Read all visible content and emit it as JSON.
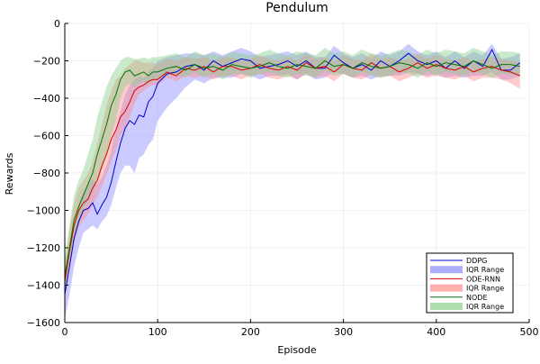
{
  "chart_data": {
    "type": "line",
    "title": "Pendulum",
    "xlabel": "Episode",
    "ylabel": "Rewards",
    "xlim": [
      0,
      500
    ],
    "ylim": [
      -1600,
      0
    ],
    "xticks": [
      0,
      100,
      200,
      300,
      400,
      500
    ],
    "yticks": [
      -1600,
      -1400,
      -1200,
      -1000,
      -800,
      -600,
      -400,
      -200,
      0
    ],
    "grid": true,
    "legend_position": "bottom-right",
    "series": [
      {
        "name": "DDPG",
        "band_name": "IQR Range",
        "color": "#0000cc",
        "band_color": "#8c8cff",
        "x": [
          0,
          5,
          10,
          15,
          20,
          25,
          30,
          35,
          40,
          45,
          50,
          55,
          60,
          65,
          70,
          75,
          80,
          85,
          90,
          95,
          100,
          110,
          120,
          130,
          140,
          150,
          160,
          170,
          180,
          190,
          200,
          210,
          220,
          230,
          240,
          250,
          260,
          270,
          280,
          290,
          300,
          310,
          320,
          330,
          340,
          350,
          360,
          370,
          380,
          390,
          400,
          410,
          420,
          430,
          440,
          450,
          460,
          470,
          480,
          490
        ],
        "y": [
          -1450,
          -1300,
          -1150,
          -1060,
          -1000,
          -990,
          -960,
          -1020,
          -970,
          -930,
          -850,
          -740,
          -640,
          -560,
          -520,
          -540,
          -490,
          -500,
          -420,
          -390,
          -320,
          -270,
          -260,
          -230,
          -220,
          -250,
          -200,
          -230,
          -210,
          -190,
          -200,
          -240,
          -230,
          -220,
          -200,
          -230,
          -200,
          -240,
          -240,
          -170,
          -210,
          -240,
          -220,
          -250,
          -200,
          -230,
          -200,
          -160,
          -200,
          -220,
          -200,
          -240,
          -200,
          -240,
          -200,
          -230,
          -140,
          -250,
          -250,
          -210
        ],
        "q1": [
          -1580,
          -1450,
          -1300,
          -1200,
          -1120,
          -1100,
          -1080,
          -1100,
          -1060,
          -1030,
          -970,
          -880,
          -800,
          -760,
          -760,
          -800,
          -720,
          -700,
          -650,
          -620,
          -520,
          -450,
          -400,
          -340,
          -300,
          -320,
          -290,
          -290,
          -290,
          -270,
          -280,
          -300,
          -280,
          -280,
          -270,
          -300,
          -270,
          -300,
          -290,
          -260,
          -270,
          -290,
          -280,
          -300,
          -280,
          -280,
          -280,
          -260,
          -270,
          -280,
          -270,
          -290,
          -280,
          -290,
          -280,
          -280,
          -260,
          -300,
          -300,
          -280
        ],
        "q3": [
          -1350,
          -1180,
          -1040,
          -960,
          -900,
          -860,
          -830,
          -860,
          -820,
          -760,
          -680,
          -560,
          -470,
          -380,
          -330,
          -300,
          -280,
          -290,
          -260,
          -240,
          -200,
          -180,
          -170,
          -160,
          -160,
          -170,
          -150,
          -170,
          -150,
          -130,
          -150,
          -180,
          -170,
          -160,
          -150,
          -170,
          -150,
          -180,
          -180,
          -120,
          -160,
          -180,
          -160,
          -190,
          -150,
          -170,
          -150,
          -110,
          -150,
          -170,
          -150,
          -180,
          -150,
          -180,
          -150,
          -170,
          -110,
          -190,
          -180,
          -160
        ]
      },
      {
        "name": "ODE-RNN",
        "band_name": "IQR Range",
        "color": "#dd0000",
        "band_color": "#ff8c8c",
        "x": [
          0,
          5,
          10,
          15,
          20,
          25,
          30,
          35,
          40,
          45,
          50,
          55,
          60,
          65,
          70,
          75,
          80,
          85,
          90,
          95,
          100,
          110,
          120,
          130,
          140,
          150,
          160,
          170,
          180,
          190,
          200,
          210,
          220,
          230,
          240,
          250,
          260,
          270,
          280,
          290,
          300,
          310,
          320,
          330,
          340,
          350,
          360,
          370,
          380,
          390,
          400,
          410,
          420,
          430,
          440,
          450,
          460,
          470,
          480,
          490
        ],
        "y": [
          -1380,
          -1220,
          -1080,
          -1000,
          -960,
          -940,
          -880,
          -840,
          -760,
          -700,
          -620,
          -570,
          -500,
          -470,
          -420,
          -360,
          -340,
          -330,
          -310,
          -300,
          -300,
          -260,
          -280,
          -240,
          -250,
          -230,
          -260,
          -230,
          -230,
          -250,
          -240,
          -220,
          -240,
          -250,
          -230,
          -250,
          -210,
          -240,
          -230,
          -260,
          -220,
          -240,
          -250,
          -210,
          -240,
          -230,
          -260,
          -240,
          -210,
          -240,
          -220,
          -240,
          -250,
          -230,
          -260,
          -240,
          -230,
          -250,
          -260,
          -280
        ],
        "q1": [
          -1460,
          -1320,
          -1180,
          -1090,
          -1050,
          -1020,
          -970,
          -930,
          -870,
          -810,
          -740,
          -680,
          -600,
          -560,
          -500,
          -430,
          -380,
          -360,
          -340,
          -330,
          -330,
          -290,
          -310,
          -280,
          -290,
          -280,
          -300,
          -280,
          -280,
          -300,
          -280,
          -270,
          -290,
          -300,
          -280,
          -300,
          -270,
          -290,
          -280,
          -310,
          -270,
          -290,
          -300,
          -270,
          -290,
          -280,
          -310,
          -290,
          -270,
          -290,
          -280,
          -290,
          -300,
          -280,
          -310,
          -290,
          -290,
          -300,
          -320,
          -350
        ],
        "q3": [
          -1300,
          -1100,
          -960,
          -880,
          -840,
          -800,
          -740,
          -640,
          -540,
          -440,
          -360,
          -300,
          -280,
          -240,
          -220,
          -200,
          -200,
          -210,
          -210,
          -210,
          -220,
          -190,
          -200,
          -180,
          -190,
          -180,
          -200,
          -180,
          -180,
          -200,
          -190,
          -170,
          -190,
          -200,
          -180,
          -200,
          -160,
          -190,
          -180,
          -200,
          -170,
          -190,
          -200,
          -160,
          -190,
          -180,
          -200,
          -190,
          -160,
          -190,
          -170,
          -190,
          -200,
          -180,
          -200,
          -190,
          -180,
          -190,
          -200,
          -210
        ]
      },
      {
        "name": "NODE",
        "band_name": "IQR Range",
        "color": "#007700",
        "band_color": "#8ccf8c",
        "x": [
          0,
          5,
          10,
          15,
          20,
          25,
          30,
          35,
          40,
          45,
          50,
          55,
          60,
          65,
          70,
          75,
          80,
          85,
          90,
          95,
          100,
          110,
          120,
          130,
          140,
          150,
          160,
          170,
          180,
          190,
          200,
          210,
          220,
          230,
          240,
          250,
          260,
          270,
          280,
          290,
          300,
          310,
          320,
          330,
          340,
          350,
          360,
          370,
          380,
          390,
          400,
          410,
          420,
          430,
          440,
          450,
          460,
          470,
          480,
          490
        ],
        "y": [
          -1350,
          -1200,
          -1050,
          -980,
          -920,
          -860,
          -800,
          -700,
          -620,
          -540,
          -440,
          -380,
          -300,
          -260,
          -250,
          -280,
          -270,
          -260,
          -280,
          -260,
          -260,
          -240,
          -230,
          -250,
          -220,
          -240,
          -230,
          -250,
          -220,
          -230,
          -240,
          -230,
          -210,
          -230,
          -240,
          -220,
          -230,
          -240,
          -200,
          -230,
          -220,
          -240,
          -210,
          -230,
          -240,
          -230,
          -210,
          -220,
          -240,
          -210,
          -230,
          -210,
          -220,
          -230,
          -200,
          -220,
          -240,
          -220,
          -220,
          -230
        ],
        "q1": [
          -1430,
          -1300,
          -1160,
          -1070,
          -1000,
          -950,
          -900,
          -840,
          -780,
          -700,
          -600,
          -520,
          -400,
          -340,
          -320,
          -340,
          -320,
          -310,
          -330,
          -300,
          -300,
          -280,
          -270,
          -290,
          -260,
          -290,
          -270,
          -300,
          -270,
          -270,
          -290,
          -270,
          -260,
          -280,
          -290,
          -270,
          -280,
          -290,
          -250,
          -280,
          -270,
          -290,
          -260,
          -280,
          -290,
          -280,
          -260,
          -270,
          -290,
          -260,
          -280,
          -260,
          -270,
          -280,
          -260,
          -270,
          -290,
          -270,
          -270,
          -280
        ],
        "q3": [
          -1260,
          -1080,
          -920,
          -840,
          -780,
          -700,
          -620,
          -500,
          -420,
          -340,
          -280,
          -240,
          -200,
          -180,
          -180,
          -190,
          -190,
          -180,
          -190,
          -180,
          -180,
          -170,
          -160,
          -180,
          -150,
          -170,
          -160,
          -180,
          -150,
          -160,
          -170,
          -160,
          -140,
          -160,
          -170,
          -150,
          -160,
          -170,
          -130,
          -160,
          -150,
          -170,
          -140,
          -160,
          -170,
          -160,
          -140,
          -150,
          -170,
          -140,
          -160,
          -140,
          -150,
          -160,
          -130,
          -150,
          -170,
          -150,
          -150,
          -160
        ]
      }
    ]
  }
}
